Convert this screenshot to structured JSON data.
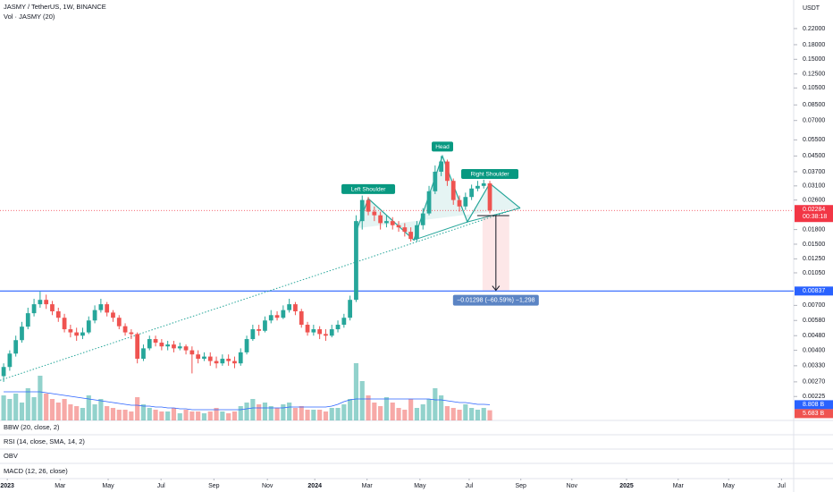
{
  "header": {
    "symbol": "JASMY / TetherUS, 1W, BINANCE",
    "volume_legend": "Vol · JASMY (20)",
    "currency": "USDT"
  },
  "chart_data": {
    "type": "candlestick",
    "log_y": true,
    "grid": false,
    "xlim": [
      -0.6,
      130
    ],
    "ylim": [
      0.00167,
      0.314
    ],
    "yticks": [
      {
        "value": 0.22,
        "label": "0.22000"
      },
      {
        "value": 0.18,
        "label": "0.18000"
      },
      {
        "value": 0.15,
        "label": "0.15000"
      },
      {
        "value": 0.125,
        "label": "0.12500"
      },
      {
        "value": 0.105,
        "label": "0.10500"
      },
      {
        "value": 0.085,
        "label": "0.08500"
      },
      {
        "value": 0.07,
        "label": "0.07000"
      },
      {
        "value": 0.055,
        "label": "0.05500"
      },
      {
        "value": 0.045,
        "label": "0.04500"
      },
      {
        "value": 0.037,
        "label": "0.03700"
      },
      {
        "value": 0.031,
        "label": "0.03100"
      },
      {
        "value": 0.026,
        "label": "0.02600"
      },
      {
        "value": 0.018,
        "label": "0.01800"
      },
      {
        "value": 0.015,
        "label": "0.01500"
      },
      {
        "value": 0.0125,
        "label": "0.01250"
      },
      {
        "value": 0.0105,
        "label": "0.01050"
      },
      {
        "value": 0.007,
        "label": "0.00700"
      },
      {
        "value": 0.0058,
        "label": "0.00580"
      },
      {
        "value": 0.0048,
        "label": "0.00480"
      },
      {
        "value": 0.004,
        "label": "0.00400"
      },
      {
        "value": 0.0033,
        "label": "0.00330"
      },
      {
        "value": 0.0027,
        "label": "0.00270"
      },
      {
        "value": 0.00225,
        "label": "0.00225"
      }
    ],
    "xticks": [
      {
        "value": 0.6,
        "label": "2023"
      },
      {
        "value": 9.3,
        "label": "Mar"
      },
      {
        "value": 17.2,
        "label": "May"
      },
      {
        "value": 25.9,
        "label": "Jul"
      },
      {
        "value": 34.6,
        "label": "Sep"
      },
      {
        "value": 43.4,
        "label": "Nov"
      },
      {
        "value": 51.2,
        "label": "2024"
      },
      {
        "value": 59.8,
        "label": "Mar"
      },
      {
        "value": 68.5,
        "label": "May"
      },
      {
        "value": 76.6,
        "label": "Jul"
      },
      {
        "value": 85.1,
        "label": "Sep"
      },
      {
        "value": 93.5,
        "label": "Nov"
      },
      {
        "value": 102.5,
        "label": "2025"
      },
      {
        "value": 111,
        "label": "Mar"
      },
      {
        "value": 119.3,
        "label": "May"
      },
      {
        "value": 128,
        "label": "Jul"
      }
    ],
    "up_color": "#26a69a",
    "down_color": "#ef5350",
    "open": [
      0.0029,
      0.00325,
      0.00384,
      0.00454,
      0.00537,
      0.00635,
      0.0071,
      0.0075,
      0.0071,
      0.0065,
      0.006,
      0.0052,
      0.005,
      0.0048,
      0.005,
      0.0058,
      0.0066,
      0.0071,
      0.0064,
      0.006,
      0.0054,
      0.005,
      0.0049,
      0.0036,
      0.0041,
      0.0046,
      0.0044,
      0.0042,
      0.0043,
      0.0041,
      0.0042,
      0.004,
      0.0038,
      0.0036,
      0.0037,
      0.0035,
      0.0034,
      0.0036,
      0.0035,
      0.0034,
      0.0039,
      0.0046,
      0.0052,
      0.0051,
      0.0058,
      0.0062,
      0.006,
      0.0066,
      0.0071,
      0.0065,
      0.0055,
      0.005,
      0.0052,
      0.0049,
      0.0048,
      0.0052,
      0.0055,
      0.006,
      0.0075,
      0.02,
      0.026,
      0.0225,
      0.0215,
      0.0195,
      0.02,
      0.019,
      0.0185,
      0.0175,
      0.016,
      0.019,
      0.022,
      0.029,
      0.037,
      0.042,
      0.033,
      0.026,
      0.024,
      0.027,
      0.03,
      0.031,
      0.032
    ],
    "high": [
      0.0034,
      0.004,
      0.0048,
      0.0057,
      0.0068,
      0.0076,
      0.0083,
      0.008,
      0.0074,
      0.0068,
      0.0063,
      0.0055,
      0.0053,
      0.0053,
      0.0061,
      0.007,
      0.0076,
      0.0073,
      0.0066,
      0.0062,
      0.0056,
      0.0052,
      0.005,
      0.0043,
      0.0048,
      0.0048,
      0.0046,
      0.0045,
      0.0045,
      0.0044,
      0.0043,
      0.0042,
      0.004,
      0.0039,
      0.0039,
      0.0037,
      0.0038,
      0.0038,
      0.0037,
      0.0041,
      0.0048,
      0.0055,
      0.0055,
      0.0061,
      0.0066,
      0.0065,
      0.007,
      0.0076,
      0.0073,
      0.0067,
      0.0057,
      0.0055,
      0.0054,
      0.0052,
      0.0055,
      0.0058,
      0.0063,
      0.0079,
      0.0215,
      0.0275,
      0.027,
      0.024,
      0.0225,
      0.0215,
      0.021,
      0.02,
      0.0195,
      0.0185,
      0.02,
      0.0235,
      0.031,
      0.04,
      0.045,
      0.043,
      0.034,
      0.0275,
      0.0285,
      0.0315,
      0.033,
      0.0335,
      0.033
    ],
    "low": [
      0.0027,
      0.0031,
      0.0037,
      0.0044,
      0.0052,
      0.0061,
      0.0068,
      0.0067,
      0.0062,
      0.0057,
      0.005,
      0.0047,
      0.0045,
      0.0046,
      0.0049,
      0.0056,
      0.0064,
      0.0061,
      0.0057,
      0.0052,
      0.0048,
      0.0046,
      0.0034,
      0.0035,
      0.004,
      0.0042,
      0.004,
      0.004,
      0.0039,
      0.004,
      0.0038,
      0.003,
      0.0034,
      0.0035,
      0.0033,
      0.0032,
      0.0033,
      0.0033,
      0.0032,
      0.0033,
      0.0038,
      0.0045,
      0.0048,
      0.005,
      0.0056,
      0.0058,
      0.0059,
      0.0064,
      0.0062,
      0.0053,
      0.0048,
      0.0048,
      0.0046,
      0.0045,
      0.0047,
      0.005,
      0.0053,
      0.0058,
      0.0073,
      0.018,
      0.0215,
      0.02,
      0.018,
      0.0185,
      0.018,
      0.0175,
      0.0165,
      0.0155,
      0.0155,
      0.018,
      0.0215,
      0.028,
      0.035,
      0.031,
      0.0245,
      0.0225,
      0.023,
      0.026,
      0.029,
      0.03,
      0.022
    ],
    "close": [
      0.00325,
      0.00384,
      0.00454,
      0.00537,
      0.00635,
      0.0071,
      0.0075,
      0.0071,
      0.0065,
      0.006,
      0.0052,
      0.005,
      0.0048,
      0.005,
      0.0058,
      0.0066,
      0.0071,
      0.0064,
      0.006,
      0.0054,
      0.005,
      0.0049,
      0.0036,
      0.0041,
      0.0046,
      0.0044,
      0.0042,
      0.0043,
      0.0041,
      0.0042,
      0.004,
      0.0038,
      0.0036,
      0.0037,
      0.0035,
      0.0034,
      0.0036,
      0.0035,
      0.0034,
      0.0039,
      0.0046,
      0.0052,
      0.0051,
      0.0058,
      0.0062,
      0.006,
      0.0066,
      0.0071,
      0.0065,
      0.0055,
      0.005,
      0.0052,
      0.0049,
      0.0048,
      0.0052,
      0.0055,
      0.006,
      0.0075,
      0.02,
      0.026,
      0.0225,
      0.0215,
      0.0195,
      0.02,
      0.019,
      0.0185,
      0.0175,
      0.016,
      0.019,
      0.022,
      0.029,
      0.037,
      0.042,
      0.033,
      0.026,
      0.024,
      0.027,
      0.03,
      0.031,
      0.032,
      0.02284
    ],
    "volume": {
      "ylim": [
        0,
        60
      ],
      "values": [
        14,
        12,
        15,
        10,
        18,
        13,
        25,
        15,
        12,
        10,
        12,
        9,
        8,
        7,
        14,
        9,
        12,
        8,
        7,
        6,
        6,
        5,
        13,
        9,
        7,
        6,
        5,
        5,
        7,
        4,
        6,
        5,
        5,
        4,
        5,
        7,
        5,
        4,
        5,
        8,
        10,
        12,
        9,
        10,
        8,
        7,
        9,
        10,
        7,
        8,
        6,
        6,
        6,
        5,
        7,
        7,
        9,
        12,
        32,
        22,
        14,
        10,
        8,
        13,
        10,
        7,
        6,
        12,
        7,
        9,
        12,
        18,
        14,
        8,
        7,
        6,
        9,
        7,
        6,
        7,
        5.683
      ],
      "last_label": "5.683 B",
      "sma": {
        "color": "#2962ff",
        "last_label": "8.808 B",
        "values": [
          16,
          16,
          16,
          16,
          16,
          16,
          16,
          15.5,
          15,
          14.5,
          14,
          13.5,
          13,
          12.5,
          12,
          11.5,
          11,
          10.5,
          10,
          9.5,
          9,
          8.5,
          8.5,
          8,
          8,
          7.5,
          7.5,
          7,
          7,
          6.5,
          6.5,
          6,
          6,
          6,
          6,
          6,
          6,
          6,
          6,
          6,
          6.5,
          7,
          7,
          7,
          7,
          7,
          7,
          7.5,
          7.5,
          7.5,
          7.5,
          7.5,
          7.5,
          7.5,
          8,
          9,
          10.5,
          11.5,
          12,
          12,
          12,
          12,
          12,
          12,
          12,
          12,
          12,
          12,
          12,
          12,
          12,
          11.5,
          11.5,
          11,
          10.5,
          10,
          10,
          9.5,
          9,
          9,
          8.808
        ]
      }
    },
    "price_line": {
      "value": 0.02284,
      "label": "0.02284",
      "countdown": "00:38:18",
      "color": "#f23645"
    },
    "support_line": {
      "value": 0.00837,
      "label": "0.00837",
      "color": "#2962ff"
    },
    "trendline": {
      "x": [
        -0.6,
        85
      ],
      "y": [
        0.00275,
        0.0237
      ],
      "color": "#26a69a"
    },
    "pattern": {
      "x": [
        58.2,
        60,
        67.5,
        72.2,
        76.3,
        80,
        85
      ],
      "y": [
        0.0183,
        0.0265,
        0.0158,
        0.045,
        0.0198,
        0.032,
        0.0235
      ],
      "labels": [
        null,
        "Left Shoulder",
        null,
        "Head",
        null,
        "Right Shoulder",
        null
      ],
      "color": "#26a69a"
    },
    "measure": {
      "x": [
        78.8,
        83.2
      ],
      "from": 0.02142,
      "to": 0.00844,
      "label": "−0.01298 (−60.59%) −1,298"
    }
  },
  "panes": [
    "BBW (20, close, 2)",
    "RSI (14, close, SMA, 14, 2)",
    "OBV",
    "MACD (12, 26, close)"
  ]
}
